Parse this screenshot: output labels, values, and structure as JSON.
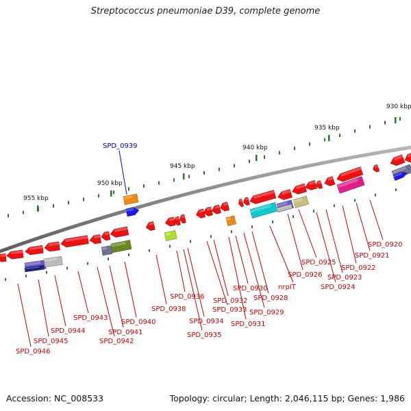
{
  "title": "Streptococcus pneumoniae D39, complete genome",
  "footer": {
    "accession": "Accession: NC_008533",
    "summary": "Topology: circular; Length: 2,046,115 bp; Genes: 1,986"
  },
  "colors": {
    "backbone": "#8a8a8a",
    "gene_default": "#ee1111",
    "label_default": "#cc0000",
    "label_selected": "#0000cc",
    "tick": "#2a7a2a",
    "orange": "#f08a10",
    "blue": "#1a1aee",
    "lime": "#a8e030",
    "olive": "#6a8a20",
    "cyan": "#10c8d0",
    "purple": "#6a5ac0",
    "grey": "#bcbcbc",
    "khaki": "#c8c080",
    "magenta": "#e0208a",
    "navy": "#202080",
    "slate": "#707090"
  },
  "kbp_labels": [
    "930 kbp",
    "935 kbp",
    "940 kbp",
    "945 kbp",
    "950 kbp",
    "955 kbp"
  ],
  "genes": [
    {
      "label": "SPD_0920"
    },
    {
      "label": "SPD_0921"
    },
    {
      "label": "SPD_0922"
    },
    {
      "label": "SPD_0923"
    },
    {
      "label": "SPD_0924"
    },
    {
      "label": "SPD_0925"
    },
    {
      "label": "SPD_0926"
    },
    {
      "label": "nrpIT"
    },
    {
      "label": "SPD_0928"
    },
    {
      "label": "SPD_0929"
    },
    {
      "label": "SPD_0930"
    },
    {
      "label": "SPD_0931"
    },
    {
      "label": "SPD_0932"
    },
    {
      "label": "SPD_0933"
    },
    {
      "label": "SPD_0934"
    },
    {
      "label": "SPD_0935"
    },
    {
      "label": "SPD_0936"
    },
    {
      "label": "SPD_0938"
    },
    {
      "label": "SPD_0939"
    },
    {
      "label": "SPD_0940"
    },
    {
      "label": "SPD_0941"
    },
    {
      "label": "SPD_0942"
    },
    {
      "label": "SPD_0943"
    },
    {
      "label": "SPD_0944"
    },
    {
      "label": "SPD_0945"
    },
    {
      "label": "SPD_0946"
    }
  ]
}
